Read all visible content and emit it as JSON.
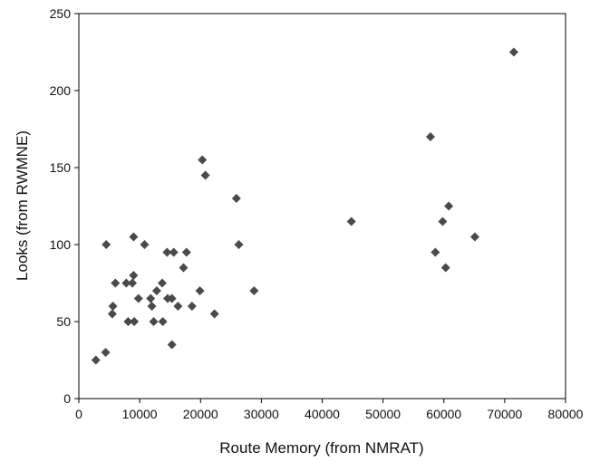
{
  "colors": {
    "marker": "#4a4a4a",
    "axis": "#000000",
    "text": "#111111"
  },
  "chart_data": {
    "type": "scatter",
    "title": "",
    "xlabel": "Route Memory (from NMRAT)",
    "ylabel": "Looks (from RWMNE)",
    "xlim": [
      0,
      80000
    ],
    "ylim": [
      0,
      250
    ],
    "xticks": [
      0,
      10000,
      20000,
      30000,
      40000,
      50000,
      60000,
      70000,
      80000
    ],
    "yticks": [
      0,
      50,
      100,
      150,
      200,
      250
    ],
    "grid": false,
    "legend": "none",
    "marker": "diamond",
    "points": [
      {
        "x": 2800,
        "y": 25
      },
      {
        "x": 4400,
        "y": 30
      },
      {
        "x": 4500,
        "y": 100
      },
      {
        "x": 5500,
        "y": 55
      },
      {
        "x": 5600,
        "y": 60
      },
      {
        "x": 6000,
        "y": 75
      },
      {
        "x": 7800,
        "y": 75
      },
      {
        "x": 8100,
        "y": 50
      },
      {
        "x": 8800,
        "y": 75
      },
      {
        "x": 9000,
        "y": 105
      },
      {
        "x": 9000,
        "y": 80
      },
      {
        "x": 9100,
        "y": 50
      },
      {
        "x": 9800,
        "y": 65
      },
      {
        "x": 10800,
        "y": 100
      },
      {
        "x": 11800,
        "y": 65
      },
      {
        "x": 12000,
        "y": 60
      },
      {
        "x": 12300,
        "y": 50
      },
      {
        "x": 12800,
        "y": 70
      },
      {
        "x": 13700,
        "y": 75
      },
      {
        "x": 13800,
        "y": 50
      },
      {
        "x": 14500,
        "y": 95
      },
      {
        "x": 14600,
        "y": 65
      },
      {
        "x": 15300,
        "y": 65
      },
      {
        "x": 15300,
        "y": 35
      },
      {
        "x": 15600,
        "y": 95
      },
      {
        "x": 16300,
        "y": 60
      },
      {
        "x": 17200,
        "y": 85
      },
      {
        "x": 17700,
        "y": 95
      },
      {
        "x": 18600,
        "y": 60
      },
      {
        "x": 19900,
        "y": 70
      },
      {
        "x": 20300,
        "y": 155
      },
      {
        "x": 20800,
        "y": 145
      },
      {
        "x": 22300,
        "y": 55
      },
      {
        "x": 25900,
        "y": 130
      },
      {
        "x": 26300,
        "y": 100
      },
      {
        "x": 28800,
        "y": 70
      },
      {
        "x": 44800,
        "y": 115
      },
      {
        "x": 57800,
        "y": 170
      },
      {
        "x": 58600,
        "y": 95
      },
      {
        "x": 59800,
        "y": 115
      },
      {
        "x": 60300,
        "y": 85
      },
      {
        "x": 60800,
        "y": 125
      },
      {
        "x": 65100,
        "y": 105
      },
      {
        "x": 71500,
        "y": 225
      }
    ]
  }
}
